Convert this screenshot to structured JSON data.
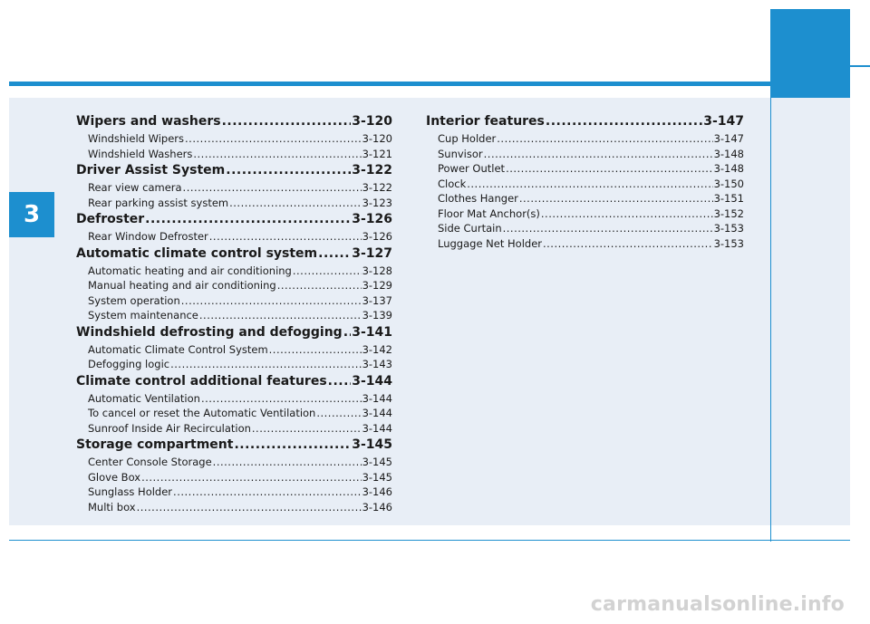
{
  "chapter_tab": "3",
  "left_column": [
    {
      "kind": "main",
      "title": "Wipers and washers",
      "page": "3-120"
    },
    {
      "kind": "sub",
      "title": "Windshield Wipers",
      "page": "3-120"
    },
    {
      "kind": "sub",
      "title": "Windshield Washers",
      "page": "3-121"
    },
    {
      "kind": "main",
      "title": "Driver Assist System",
      "page": "3-122"
    },
    {
      "kind": "sub",
      "title": "Rear view camera",
      "page": "3-122"
    },
    {
      "kind": "sub",
      "title": "Rear parking assist system",
      "page": "3-123"
    },
    {
      "kind": "main",
      "title": "Defroster",
      "page": "3-126"
    },
    {
      "kind": "sub",
      "title": "Rear Window Defroster",
      "page": "3-126"
    },
    {
      "kind": "main",
      "title": "Automatic climate control system",
      "page": "3-127"
    },
    {
      "kind": "sub",
      "title": "Automatic heating and air conditioning",
      "page": "3-128"
    },
    {
      "kind": "sub",
      "title": "Manual heating and air conditioning",
      "page": "3-129"
    },
    {
      "kind": "sub",
      "title": "System operation",
      "page": "3-137"
    },
    {
      "kind": "sub",
      "title": "System maintenance",
      "page": "3-139"
    },
    {
      "kind": "main",
      "title": "Windshield defrosting and defogging",
      "page": "3-141"
    },
    {
      "kind": "sub",
      "title": "Automatic Climate Control System",
      "page": "3-142"
    },
    {
      "kind": "sub",
      "title": "Defogging logic",
      "page": "3-143"
    },
    {
      "kind": "main",
      "title": "Climate control additional features",
      "page": "3-144"
    },
    {
      "kind": "sub",
      "title": "Automatic Ventilation",
      "page": "3-144"
    },
    {
      "kind": "sub",
      "title": "To cancel or reset the Automatic Ventilation",
      "page": "3-144"
    },
    {
      "kind": "sub",
      "title": "Sunroof Inside Air Recirculation",
      "page": "3-144"
    },
    {
      "kind": "main",
      "title": "Storage compartment",
      "page": "3-145"
    },
    {
      "kind": "sub",
      "title": "Center Console Storage",
      "page": "3-145"
    },
    {
      "kind": "sub",
      "title": "Glove Box",
      "page": "3-145"
    },
    {
      "kind": "sub",
      "title": "Sunglass Holder",
      "page": "3-146"
    },
    {
      "kind": "sub",
      "title": "Multi box",
      "page": "3-146"
    }
  ],
  "right_column": [
    {
      "kind": "main",
      "title": "Interior features",
      "page": "3-147"
    },
    {
      "kind": "sub",
      "title": "Cup Holder",
      "page": "3-147"
    },
    {
      "kind": "sub",
      "title": "Sunvisor",
      "page": "3-148"
    },
    {
      "kind": "sub",
      "title": "Power Outlet",
      "page": "3-148"
    },
    {
      "kind": "sub",
      "title": "Clock",
      "page": "3-150"
    },
    {
      "kind": "sub",
      "title": "Clothes Hanger",
      "page": "3-151"
    },
    {
      "kind": "sub",
      "title": "Floor Mat Anchor(s)",
      "page": "3-152"
    },
    {
      "kind": "sub",
      "title": "Side Curtain",
      "page": "3-153"
    },
    {
      "kind": "sub",
      "title": "Luggage Net Holder",
      "page": "3-153"
    }
  ],
  "watermark": "carmanualsonline.info",
  "colors": {
    "accent": "#1d8fcf",
    "panel": "#e8eef6",
    "watermark": "#d2d2d2"
  }
}
